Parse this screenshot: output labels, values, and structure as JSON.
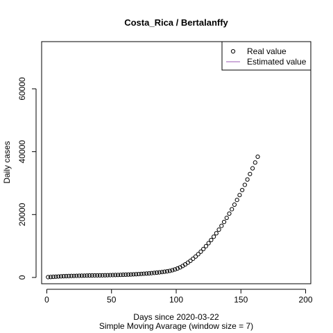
{
  "chart_data": {
    "type": "scatter",
    "title": "Costa_Rica / Bertalanffy",
    "xlabel": "Days since 2020-03-22",
    "subtitle": "Simple Moving Avarage (window size = 7)",
    "ylabel": "Daily cases",
    "xlim": [
      -4,
      204
    ],
    "ylim": [
      -2000,
      75000
    ],
    "x_ticks": [
      0,
      50,
      100,
      150,
      200
    ],
    "y_ticks": [
      0,
      20000,
      40000,
      60000
    ],
    "legend": {
      "position": "top-right",
      "entries": [
        {
          "label": "Real value",
          "symbol": "circle",
          "color": "#000000"
        },
        {
          "label": "Estimated value",
          "symbol": "line",
          "color": "#9b59b6"
        }
      ]
    },
    "series": [
      {
        "name": "Real value",
        "color": "#000000",
        "marker": "open-circle",
        "x": [
          1,
          3,
          5,
          7,
          9,
          11,
          13,
          15,
          17,
          19,
          21,
          23,
          25,
          27,
          29,
          31,
          33,
          35,
          37,
          39,
          41,
          43,
          45,
          47,
          49,
          51,
          53,
          55,
          57,
          59,
          61,
          63,
          65,
          67,
          69,
          71,
          73,
          75,
          77,
          79,
          81,
          83,
          85,
          87,
          89,
          91,
          93,
          95,
          97,
          99,
          101,
          103,
          105,
          107,
          109,
          111,
          113,
          115,
          117,
          119,
          121,
          123,
          125,
          127,
          129,
          131,
          133,
          135,
          137,
          139,
          141,
          143,
          145,
          147,
          149,
          151,
          153,
          155,
          157,
          159,
          161,
          163
        ],
        "y": [
          100,
          150,
          200,
          250,
          300,
          350,
          400,
          420,
          450,
          480,
          500,
          520,
          540,
          560,
          580,
          600,
          620,
          640,
          650,
          660,
          670,
          680,
          700,
          720,
          740,
          760,
          780,
          800,
          830,
          860,
          890,
          920,
          950,
          990,
          1030,
          1080,
          1130,
          1180,
          1240,
          1300,
          1370,
          1450,
          1530,
          1620,
          1720,
          1830,
          1950,
          2100,
          2300,
          2550,
          2850,
          3200,
          3650,
          4150,
          4700,
          5300,
          5950,
          6650,
          7400,
          8200,
          9050,
          9950,
          10900,
          11900,
          12950,
          14050,
          15200,
          16400,
          17650,
          18950,
          20300,
          21700,
          23150,
          24650,
          26200,
          27800,
          29450,
          31150,
          32900,
          34700,
          36550,
          38400
        ]
      }
    ]
  }
}
